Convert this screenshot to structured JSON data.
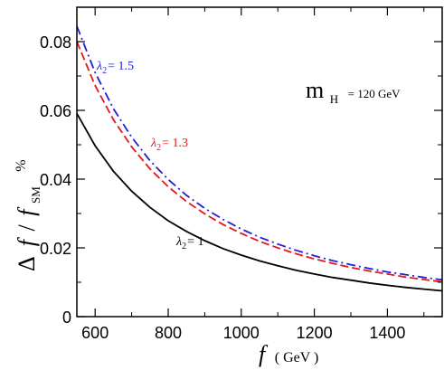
{
  "chart_data": {
    "type": "line",
    "xlim": [
      550,
      1550
    ],
    "ylim": [
      0,
      0.09
    ],
    "x_ticks": [
      600,
      800,
      1000,
      1200,
      1400
    ],
    "x_tick_labels": [
      "600",
      "800",
      "1000",
      "1200",
      "1400"
    ],
    "y_ticks": [
      0,
      0.02,
      0.04,
      0.06,
      0.08
    ],
    "y_tick_labels": [
      "0",
      "0.02",
      "0.04",
      "0.06",
      "0.08"
    ],
    "xlabel": {
      "main": "f",
      "unit": "( GeV )"
    },
    "ylabel": {
      "delta": "Δ",
      "f1": "f",
      "slash": "/",
      "f2": "f",
      "sub": "SM",
      "pct": "%"
    },
    "annotation": {
      "main": "m",
      "sub": "H",
      "value": "= 120 GeV"
    },
    "grid": false,
    "series": [
      {
        "name": "λ2 = 1",
        "label": {
          "lambda": "λ",
          "sub": "2",
          "rest": "= 1"
        },
        "color": "#000000",
        "style": "solid",
        "x": [
          550,
          600,
          650,
          700,
          750,
          800,
          850,
          900,
          950,
          1000,
          1050,
          1100,
          1150,
          1200,
          1250,
          1300,
          1350,
          1400,
          1450,
          1500,
          1550
        ],
        "y": [
          0.0591,
          0.0497,
          0.0423,
          0.0365,
          0.0318,
          0.0279,
          0.0248,
          0.0221,
          0.0198,
          0.0179,
          0.0162,
          0.0148,
          0.0135,
          0.0124,
          0.0114,
          0.0106,
          0.0098,
          0.0091,
          0.0085,
          0.008,
          0.0075
        ]
      },
      {
        "name": "λ2 = 1.3",
        "label": {
          "lambda": "λ",
          "sub": "2",
          "rest": "= 1.3"
        },
        "color": "#e8141c",
        "style": "dashed",
        "x": [
          550,
          600,
          650,
          700,
          750,
          800,
          850,
          900,
          950,
          1000,
          1050,
          1100,
          1150,
          1200,
          1250,
          1300,
          1350,
          1400,
          1450,
          1500,
          1550
        ],
        "y": [
          0.08,
          0.0672,
          0.0573,
          0.0494,
          0.043,
          0.0378,
          0.0335,
          0.0299,
          0.0268,
          0.0242,
          0.0219,
          0.02,
          0.0183,
          0.0168,
          0.0155,
          0.0143,
          0.0133,
          0.0124,
          0.0115,
          0.0108,
          0.0101
        ]
      },
      {
        "name": "λ2 = 1.5",
        "label": {
          "lambda": "λ",
          "sub": "2",
          "rest": "= 1.5"
        },
        "color": "#1f1fd6",
        "style": "dashdot",
        "x": [
          550,
          600,
          650,
          700,
          750,
          800,
          850,
          900,
          950,
          1000,
          1050,
          1100,
          1150,
          1200,
          1250,
          1300,
          1350,
          1400,
          1450,
          1500,
          1550
        ],
        "y": [
          0.0845,
          0.071,
          0.0605,
          0.0522,
          0.0454,
          0.0399,
          0.0353,
          0.0315,
          0.0283,
          0.0255,
          0.0231,
          0.0211,
          0.0193,
          0.0177,
          0.0163,
          0.0151,
          0.014,
          0.013,
          0.0122,
          0.0114,
          0.0107
        ]
      }
    ]
  }
}
